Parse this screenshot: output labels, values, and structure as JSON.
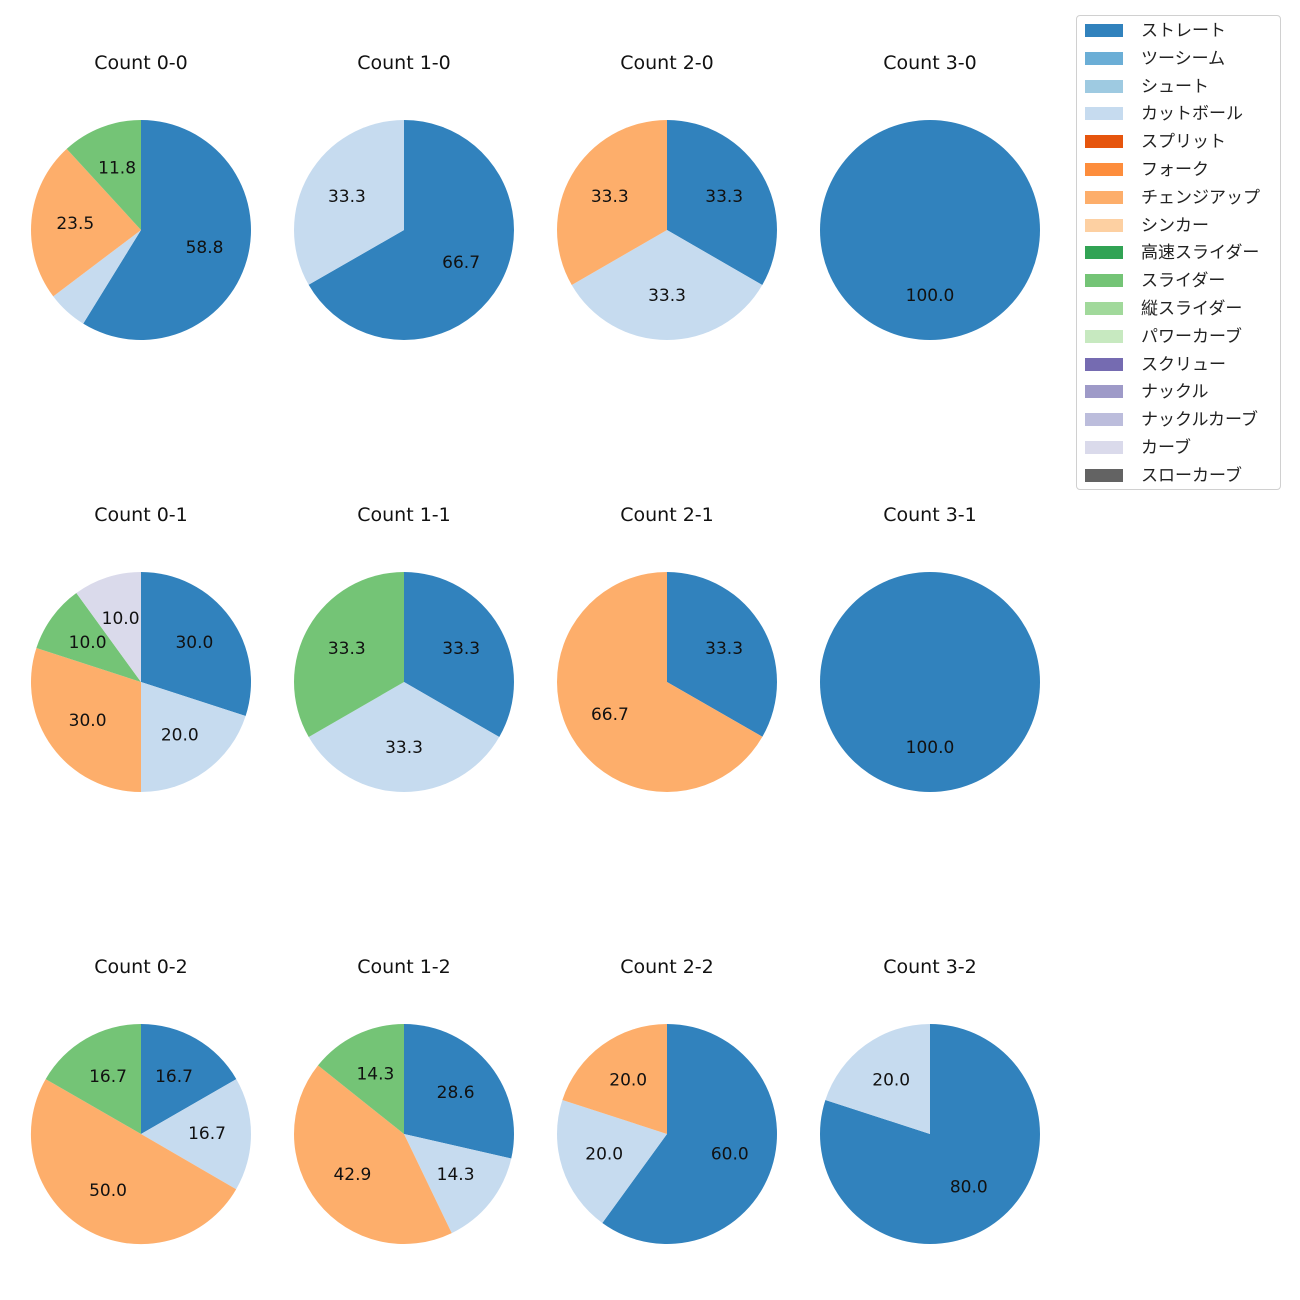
{
  "chart_data": {
    "type": "pie",
    "legend": {
      "placement": "top-right",
      "entries": [
        {
          "label": "ストレート",
          "color": "#3182bd"
        },
        {
          "label": "ツーシーム",
          "color": "#6baed6"
        },
        {
          "label": "シュート",
          "color": "#9ecae1"
        },
        {
          "label": "カットボール",
          "color": "#c6dbef"
        },
        {
          "label": "スプリット",
          "color": "#e6550d"
        },
        {
          "label": "フォーク",
          "color": "#fd8d3c"
        },
        {
          "label": "チェンジアップ",
          "color": "#fdae6b"
        },
        {
          "label": "シンカー",
          "color": "#fdd0a2"
        },
        {
          "label": "高速スライダー",
          "color": "#31a354"
        },
        {
          "label": "スライダー",
          "color": "#74c476"
        },
        {
          "label": "縦スライダー",
          "color": "#a1d99b"
        },
        {
          "label": "パワーカーブ",
          "color": "#c7e9c0"
        },
        {
          "label": "スクリュー",
          "color": "#756bb1"
        },
        {
          "label": "ナックル",
          "color": "#9e9ac8"
        },
        {
          "label": "ナックルカーブ",
          "color": "#bcbddc"
        },
        {
          "label": "カーブ",
          "color": "#dadaeb"
        },
        {
          "label": "スローカーブ",
          "color": "#636363"
        }
      ]
    },
    "pies": [
      {
        "title": "Count 0-0",
        "slices": [
          {
            "pitch": "ストレート",
            "value": 58.8,
            "label": "58.8"
          },
          {
            "pitch": "カットボール",
            "value": 5.9,
            "label": ""
          },
          {
            "pitch": "チェンジアップ",
            "value": 23.5,
            "label": "23.5"
          },
          {
            "pitch": "スライダー",
            "value": 11.8,
            "label": "11.8"
          }
        ]
      },
      {
        "title": "Count 1-0",
        "slices": [
          {
            "pitch": "ストレート",
            "value": 66.7,
            "label": "66.7"
          },
          {
            "pitch": "カットボール",
            "value": 33.3,
            "label": "33.3"
          }
        ]
      },
      {
        "title": "Count 2-0",
        "slices": [
          {
            "pitch": "ストレート",
            "value": 33.3,
            "label": "33.3"
          },
          {
            "pitch": "カットボール",
            "value": 33.3,
            "label": "33.3"
          },
          {
            "pitch": "チェンジアップ",
            "value": 33.3,
            "label": "33.3"
          }
        ]
      },
      {
        "title": "Count 3-0",
        "slices": [
          {
            "pitch": "ストレート",
            "value": 100.0,
            "label": "100.0"
          }
        ]
      },
      {
        "title": "Count 0-1",
        "slices": [
          {
            "pitch": "ストレート",
            "value": 30.0,
            "label": "30.0"
          },
          {
            "pitch": "カットボール",
            "value": 20.0,
            "label": "20.0"
          },
          {
            "pitch": "チェンジアップ",
            "value": 30.0,
            "label": "30.0"
          },
          {
            "pitch": "スライダー",
            "value": 10.0,
            "label": "10.0"
          },
          {
            "pitch": "カーブ",
            "value": 10.0,
            "label": "10.0"
          }
        ]
      },
      {
        "title": "Count 1-1",
        "slices": [
          {
            "pitch": "ストレート",
            "value": 33.3,
            "label": "33.3"
          },
          {
            "pitch": "カットボール",
            "value": 33.3,
            "label": "33.3"
          },
          {
            "pitch": "スライダー",
            "value": 33.3,
            "label": "33.3"
          }
        ]
      },
      {
        "title": "Count 2-1",
        "slices": [
          {
            "pitch": "ストレート",
            "value": 33.3,
            "label": "33.3"
          },
          {
            "pitch": "チェンジアップ",
            "value": 66.7,
            "label": "66.7"
          }
        ]
      },
      {
        "title": "Count 3-1",
        "slices": [
          {
            "pitch": "ストレート",
            "value": 100.0,
            "label": "100.0"
          }
        ]
      },
      {
        "title": "Count 0-2",
        "slices": [
          {
            "pitch": "ストレート",
            "value": 16.7,
            "label": "16.7"
          },
          {
            "pitch": "カットボール",
            "value": 16.7,
            "label": "16.7"
          },
          {
            "pitch": "チェンジアップ",
            "value": 50.0,
            "label": "50.0"
          },
          {
            "pitch": "スライダー",
            "value": 16.7,
            "label": "16.7"
          }
        ]
      },
      {
        "title": "Count 1-2",
        "slices": [
          {
            "pitch": "ストレート",
            "value": 28.6,
            "label": "28.6"
          },
          {
            "pitch": "カットボール",
            "value": 14.3,
            "label": "14.3"
          },
          {
            "pitch": "チェンジアップ",
            "value": 42.9,
            "label": "42.9"
          },
          {
            "pitch": "スライダー",
            "value": 14.3,
            "label": "14.3"
          }
        ]
      },
      {
        "title": "Count 2-2",
        "slices": [
          {
            "pitch": "ストレート",
            "value": 60.0,
            "label": "60.0"
          },
          {
            "pitch": "カットボール",
            "value": 20.0,
            "label": "20.0"
          },
          {
            "pitch": "チェンジアップ",
            "value": 20.0,
            "label": "20.0"
          }
        ]
      },
      {
        "title": "Count 3-2",
        "slices": [
          {
            "pitch": "ストレート",
            "value": 80.0,
            "label": "80.0"
          },
          {
            "pitch": "カットボール",
            "value": 20.0,
            "label": "20.0"
          }
        ]
      }
    ]
  }
}
